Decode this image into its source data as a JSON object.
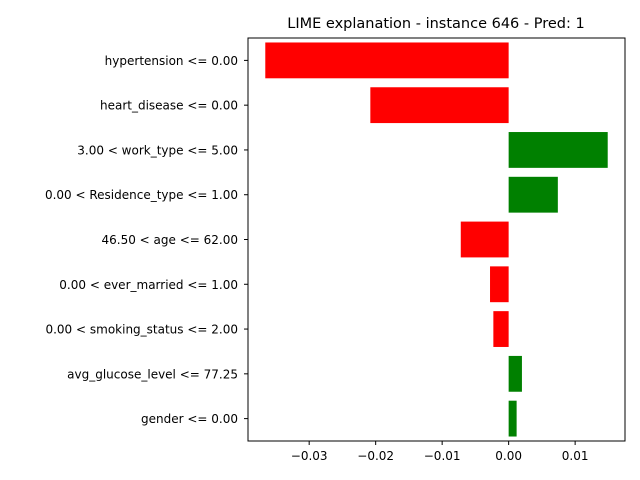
{
  "chart_data": {
    "type": "bar",
    "orientation": "horizontal",
    "title": "LIME explanation - instance 646 - Pred: 1",
    "xlabel": "",
    "ylabel": "",
    "xlim": [
      -0.0392,
      0.0175
    ],
    "xticks": [
      -0.03,
      -0.02,
      -0.01,
      0.0,
      0.01
    ],
    "xtick_labels": [
      "−0.03",
      "−0.02",
      "−0.01",
      "0.00",
      "0.01"
    ],
    "grid": false,
    "categories": [
      "hypertension <= 0.00",
      "heart_disease <= 0.00",
      "3.00 < work_type <= 5.00",
      "0.00 < Residence_type <= 1.00",
      "46.50 < age <= 62.00",
      "0.00 < ever_married <= 1.00",
      "0.00 < smoking_status <= 2.00",
      "avg_glucose_level <= 77.25",
      "gender <= 0.00"
    ],
    "values": [
      -0.0366,
      -0.0208,
      0.0149,
      0.0074,
      -0.0072,
      -0.0028,
      -0.0023,
      0.002,
      0.0012
    ],
    "colors": {
      "positive": "#008000",
      "negative": "#ff0000"
    }
  }
}
